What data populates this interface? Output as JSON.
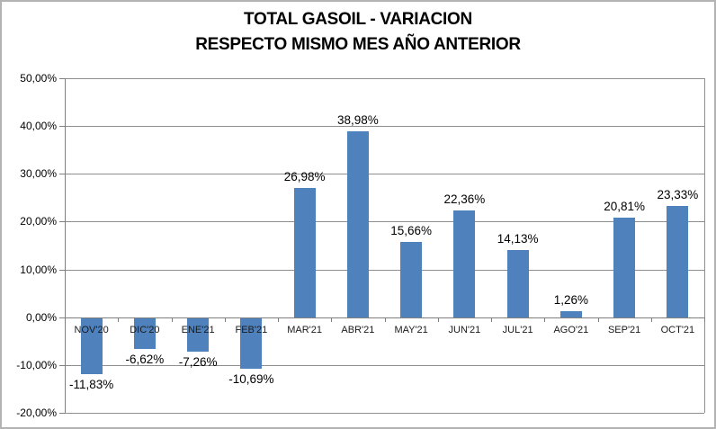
{
  "title": {
    "line1": "TOTAL GASOIL - VARIACION",
    "line2": "RESPECTO MISMO MES AÑO ANTERIOR"
  },
  "chart_data": {
    "type": "bar",
    "title": "TOTAL GASOIL - VARIACION RESPECTO MISMO MES AÑO ANTERIOR",
    "categories": [
      "NOV'20",
      "DIC'20",
      "ENE'21",
      "FEB'21",
      "MAR'21",
      "ABR'21",
      "MAY'21",
      "JUN'21",
      "JUL'21",
      "AGO'21",
      "SEP'21",
      "OCT'21"
    ],
    "values": [
      -11.83,
      -6.62,
      -7.26,
      -10.69,
      26.98,
      38.98,
      15.66,
      22.36,
      14.13,
      1.26,
      20.81,
      23.33
    ],
    "value_labels": [
      "-11,83%",
      "-6,62%",
      "-7,26%",
      "-10,69%",
      "26,98%",
      "38,98%",
      "15,66%",
      "22,36%",
      "14,13%",
      "1,26%",
      "20,81%",
      "23,33%"
    ],
    "xlabel": "",
    "ylabel": "",
    "ylim": [
      -20,
      50
    ],
    "ytick_values": [
      50,
      40,
      30,
      20,
      10,
      0,
      -10,
      -20
    ],
    "ytick_labels": [
      "50,00%",
      "40,00%",
      "30,00%",
      "20,00%",
      "10,00%",
      "0,00%",
      "-10,00%",
      "-20,00%"
    ],
    "grid": true,
    "legend": false,
    "colors": {
      "bar": "#4f81bd",
      "gridline": "#8e8e8e",
      "axis": "#7f7f7f",
      "label_text": "#000000",
      "border": "#b3b3b3"
    }
  }
}
